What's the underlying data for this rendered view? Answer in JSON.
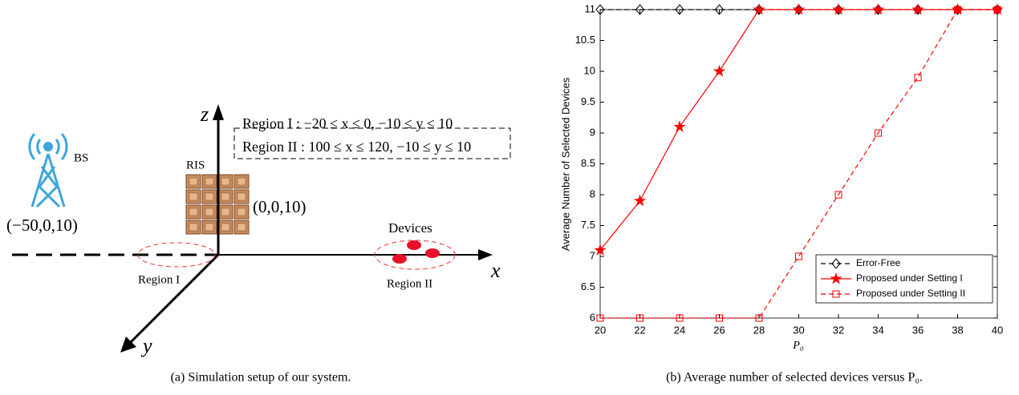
{
  "diagram": {
    "bs": "BS",
    "ris": "RIS",
    "bs_coord": "(−50,0,10)",
    "ris_coord": "(0,0,10)",
    "devices": "Devices",
    "region1": "Region I",
    "region2": "Region II",
    "axis_x": "x",
    "axis_y": "y",
    "axis_z": "z",
    "box_line1": "Region I : −20 ≤ x ≤ 0, −10 ≤ y ≤ 10",
    "box_line2": "Region II : 100 ≤ x ≤ 120, −10 ≤ y ≤ 10",
    "caption": "(a) Simulation setup of our system."
  },
  "chart_data": {
    "type": "line",
    "xlabel": "P₀",
    "ylabel": "Average Number of Selected Devices",
    "caption": "(b) Average number of selected devices versus P₀.",
    "x": [
      20,
      22,
      24,
      26,
      28,
      30,
      32,
      34,
      36,
      38,
      40
    ],
    "series": [
      {
        "name": "Error-Free",
        "color": "#000000",
        "dash": true,
        "marker": "diamond",
        "values": [
          11,
          11,
          11,
          11,
          11,
          11,
          11,
          11,
          11,
          11,
          11
        ]
      },
      {
        "name": "Proposed under Setting I",
        "color": "#ff0000",
        "dash": false,
        "marker": "star",
        "values": [
          7.1,
          7.9,
          9.1,
          10,
          11,
          11,
          11,
          11,
          11,
          11,
          11
        ]
      },
      {
        "name": "Proposed under Setting II",
        "color": "#ff0000",
        "dash": true,
        "marker": "square",
        "values": [
          6,
          6,
          6,
          6,
          6,
          7,
          8,
          9,
          9.9,
          11,
          11
        ]
      }
    ],
    "xlim": [
      20,
      40
    ],
    "xticks": [
      20,
      22,
      24,
      26,
      28,
      30,
      32,
      34,
      36,
      38,
      40
    ],
    "ylim": [
      6,
      11
    ],
    "yticks": [
      6,
      6.5,
      7,
      7.5,
      8,
      8.5,
      9,
      9.5,
      10,
      10.5,
      11
    ],
    "grid": false,
    "legend": "lower right"
  }
}
